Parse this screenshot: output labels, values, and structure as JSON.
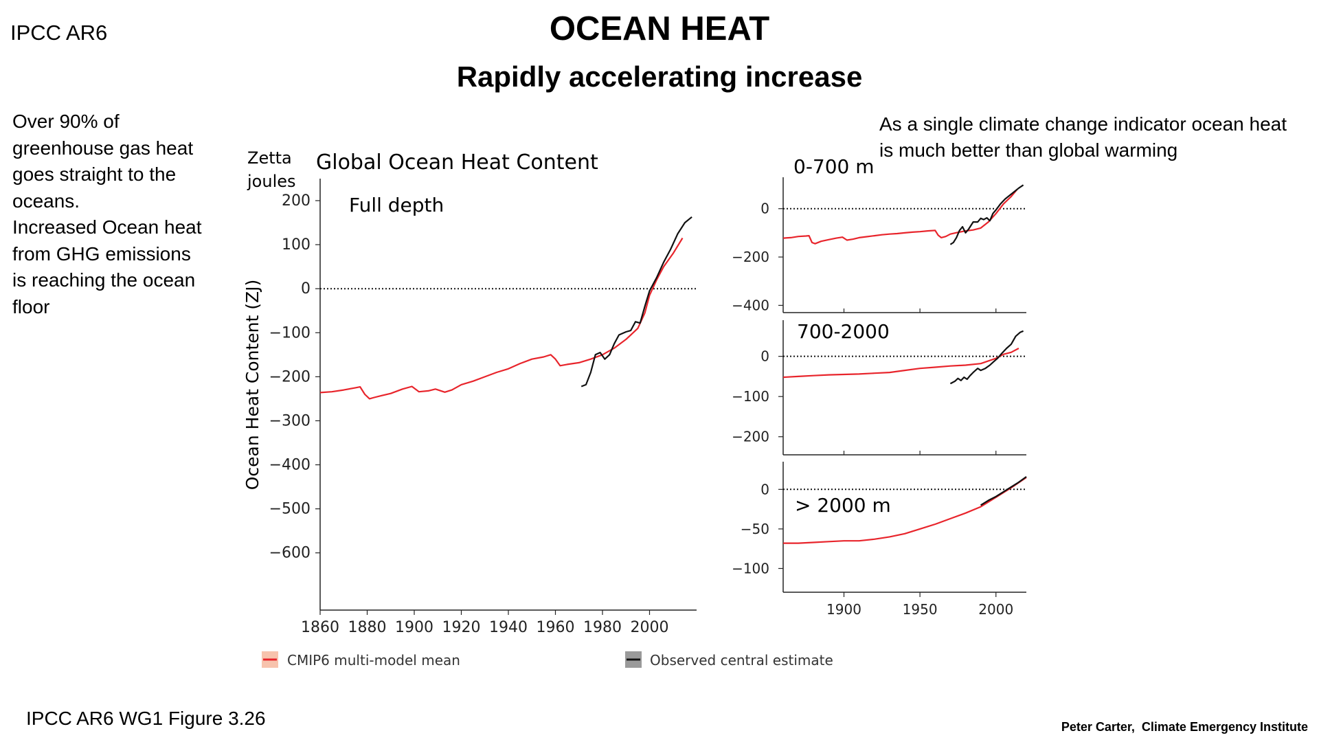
{
  "header": {
    "tag": "IPCC AR6",
    "title": "OCEAN HEAT",
    "subtitle": "Rapidly accelerating increase"
  },
  "notes": {
    "left": "Over 90% of\ngreenhouse gas heat\ngoes straight to the\noceans.\nIncreased Ocean heat\nfrom GHG emissions\nis reaching the ocean\nfloor",
    "right": "As a single climate change indicator ocean heat\nis  much better than global warming"
  },
  "footer": {
    "figure_ref": "IPCC AR6 WG1 Figure 3.26",
    "credit": "Peter Carter,  Climate Emergency Institute"
  },
  "colors": {
    "model": "#e8242b",
    "observed": "#111111",
    "model_band": "#f4b8a2",
    "observed_band": "#888888"
  },
  "legend": [
    {
      "label": "CMIP6 multi-model mean",
      "color": "#e8242b"
    },
    {
      "label": "Observed central estimate",
      "color": "#111111"
    }
  ],
  "chart_data": [
    {
      "type": "line",
      "title": "Global Ocean Heat Content",
      "panel_label": "Full depth",
      "unit_label_line1": "Zetta",
      "unit_label_line2": "joules",
      "ylabel": "Ocean Heat Content  (ZJ)",
      "xlim": [
        1860,
        2020
      ],
      "ylim": [
        -730,
        250
      ],
      "x_ticks": [
        1860,
        1880,
        1900,
        1920,
        1940,
        1960,
        1980,
        2000
      ],
      "y_ticks": [
        200,
        100,
        0,
        -100,
        -200,
        -300,
        -400,
        -500,
        -600
      ],
      "zero_line": true,
      "series": [
        {
          "name": "CMIP6 multi-model mean",
          "points": [
            [
              1860,
              -236
            ],
            [
              1865,
              -234
            ],
            [
              1870,
              -230
            ],
            [
              1875,
              -225
            ],
            [
              1877,
              -223
            ],
            [
              1879,
              -240
            ],
            [
              1881,
              -250
            ],
            [
              1883,
              -247
            ],
            [
              1886,
              -243
            ],
            [
              1890,
              -238
            ],
            [
              1895,
              -228
            ],
            [
              1899,
              -222
            ],
            [
              1902,
              -234
            ],
            [
              1906,
              -232
            ],
            [
              1909,
              -228
            ],
            [
              1913,
              -235
            ],
            [
              1916,
              -230
            ],
            [
              1920,
              -218
            ],
            [
              1925,
              -210
            ],
            [
              1930,
              -200
            ],
            [
              1935,
              -190
            ],
            [
              1940,
              -182
            ],
            [
              1945,
              -170
            ],
            [
              1950,
              -160
            ],
            [
              1955,
              -155
            ],
            [
              1958,
              -150
            ],
            [
              1960,
              -160
            ],
            [
              1962,
              -175
            ],
            [
              1965,
              -172
            ],
            [
              1970,
              -168
            ],
            [
              1975,
              -160
            ],
            [
              1980,
              -150
            ],
            [
              1985,
              -135
            ],
            [
              1990,
              -115
            ],
            [
              1995,
              -90
            ],
            [
              1998,
              -55
            ],
            [
              2000,
              -15
            ],
            [
              2003,
              20
            ],
            [
              2006,
              50
            ],
            [
              2010,
              80
            ],
            [
              2014,
              115
            ]
          ]
        },
        {
          "name": "Observed central estimate",
          "points": [
            [
              1971,
              -222
            ],
            [
              1973,
              -218
            ],
            [
              1975,
              -190
            ],
            [
              1977,
              -150
            ],
            [
              1979,
              -145
            ],
            [
              1981,
              -160
            ],
            [
              1983,
              -150
            ],
            [
              1985,
              -125
            ],
            [
              1987,
              -105
            ],
            [
              1990,
              -98
            ],
            [
              1992,
              -95
            ],
            [
              1994,
              -75
            ],
            [
              1996,
              -78
            ],
            [
              1998,
              -40
            ],
            [
              2000,
              -5
            ],
            [
              2003,
              25
            ],
            [
              2006,
              60
            ],
            [
              2009,
              90
            ],
            [
              2012,
              125
            ],
            [
              2015,
              150
            ],
            [
              2018,
              163
            ]
          ]
        }
      ]
    },
    {
      "type": "line",
      "panel_label": "0-700 m",
      "xlim": [
        1860,
        2020
      ],
      "ylim": [
        -430,
        130
      ],
      "y_ticks": [
        0,
        -200,
        -400
      ],
      "zero_line": true,
      "series": [
        {
          "name": "CMIP6 multi-model mean",
          "points": [
            [
              1860,
              -122
            ],
            [
              1865,
              -120
            ],
            [
              1870,
              -115
            ],
            [
              1875,
              -113
            ],
            [
              1877,
              -112
            ],
            [
              1879,
              -140
            ],
            [
              1881,
              -145
            ],
            [
              1885,
              -135
            ],
            [
              1890,
              -128
            ],
            [
              1895,
              -122
            ],
            [
              1899,
              -118
            ],
            [
              1902,
              -130
            ],
            [
              1906,
              -126
            ],
            [
              1910,
              -120
            ],
            [
              1915,
              -116
            ],
            [
              1920,
              -112
            ],
            [
              1925,
              -108
            ],
            [
              1930,
              -105
            ],
            [
              1935,
              -103
            ],
            [
              1940,
              -100
            ],
            [
              1945,
              -97
            ],
            [
              1950,
              -95
            ],
            [
              1955,
              -92
            ],
            [
              1960,
              -90
            ],
            [
              1962,
              -110
            ],
            [
              1964,
              -120
            ],
            [
              1967,
              -115
            ],
            [
              1970,
              -105
            ],
            [
              1975,
              -98
            ],
            [
              1980,
              -92
            ],
            [
              1985,
              -88
            ],
            [
              1990,
              -80
            ],
            [
              1995,
              -55
            ],
            [
              2000,
              -20
            ],
            [
              2005,
              20
            ],
            [
              2010,
              50
            ],
            [
              2014,
              80
            ]
          ]
        },
        {
          "name": "Observed central estimate",
          "points": [
            [
              1970,
              -148
            ],
            [
              1972,
              -140
            ],
            [
              1974,
              -120
            ],
            [
              1976,
              -90
            ],
            [
              1978,
              -75
            ],
            [
              1980,
              -100
            ],
            [
              1982,
              -85
            ],
            [
              1985,
              -55
            ],
            [
              1988,
              -55
            ],
            [
              1990,
              -40
            ],
            [
              1992,
              -45
            ],
            [
              1994,
              -38
            ],
            [
              1996,
              -50
            ],
            [
              1998,
              -20
            ],
            [
              2000,
              -5
            ],
            [
              2003,
              20
            ],
            [
              2006,
              40
            ],
            [
              2009,
              55
            ],
            [
              2012,
              70
            ],
            [
              2015,
              85
            ],
            [
              2018,
              98
            ]
          ]
        }
      ]
    },
    {
      "type": "line",
      "panel_label": "700-2000",
      "xlim": [
        1860,
        2020
      ],
      "ylim": [
        -245,
        90
      ],
      "y_ticks": [
        0,
        -100,
        -200
      ],
      "zero_line": true,
      "series": [
        {
          "name": "CMIP6 multi-model mean",
          "points": [
            [
              1860,
              -52
            ],
            [
              1870,
              -50
            ],
            [
              1880,
              -48
            ],
            [
              1890,
              -46
            ],
            [
              1900,
              -45
            ],
            [
              1910,
              -44
            ],
            [
              1920,
              -42
            ],
            [
              1930,
              -40
            ],
            [
              1940,
              -35
            ],
            [
              1950,
              -30
            ],
            [
              1960,
              -27
            ],
            [
              1970,
              -24
            ],
            [
              1980,
              -22
            ],
            [
              1990,
              -18
            ],
            [
              2000,
              -5
            ],
            [
              2005,
              5
            ],
            [
              2010,
              10
            ],
            [
              2015,
              20
            ]
          ]
        },
        {
          "name": "Observed central estimate",
          "points": [
            [
              1970,
              -68
            ],
            [
              1973,
              -62
            ],
            [
              1975,
              -55
            ],
            [
              1977,
              -60
            ],
            [
              1979,
              -52
            ],
            [
              1981,
              -57
            ],
            [
              1983,
              -48
            ],
            [
              1985,
              -40
            ],
            [
              1988,
              -30
            ],
            [
              1990,
              -35
            ],
            [
              1993,
              -30
            ],
            [
              1996,
              -22
            ],
            [
              1998,
              -15
            ],
            [
              2001,
              -5
            ],
            [
              2004,
              8
            ],
            [
              2007,
              20
            ],
            [
              2010,
              30
            ],
            [
              2013,
              50
            ],
            [
              2016,
              60
            ],
            [
              2018,
              63
            ]
          ]
        }
      ]
    },
    {
      "type": "line",
      "panel_label": "> 2000 m",
      "xlim": [
        1860,
        2020
      ],
      "ylim": [
        -130,
        35
      ],
      "x_ticks": [
        1900,
        1950,
        2000
      ],
      "y_ticks": [
        0,
        -50,
        -100
      ],
      "zero_line": true,
      "series": [
        {
          "name": "CMIP6 multi-model mean",
          "points": [
            [
              1860,
              -68
            ],
            [
              1870,
              -68
            ],
            [
              1880,
              -67
            ],
            [
              1890,
              -66
            ],
            [
              1900,
              -65
            ],
            [
              1910,
              -65
            ],
            [
              1920,
              -63
            ],
            [
              1930,
              -60
            ],
            [
              1940,
              -56
            ],
            [
              1950,
              -50
            ],
            [
              1960,
              -44
            ],
            [
              1970,
              -37
            ],
            [
              1980,
              -30
            ],
            [
              1990,
              -22
            ],
            [
              2000,
              -10
            ],
            [
              2010,
              2
            ],
            [
              2020,
              15
            ]
          ]
        },
        {
          "name": "Observed central estimate",
          "points": [
            [
              1990,
              -20
            ],
            [
              1995,
              -14
            ],
            [
              2000,
              -9
            ],
            [
              2005,
              -3
            ],
            [
              2010,
              3
            ],
            [
              2015,
              9
            ],
            [
              2020,
              16
            ]
          ]
        }
      ]
    }
  ]
}
